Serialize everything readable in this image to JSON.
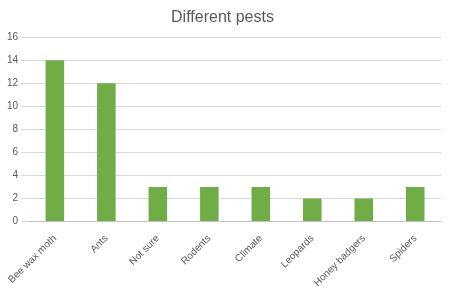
{
  "chart_data": {
    "type": "bar",
    "title": "Different pests",
    "categories": [
      "Bee wax moth",
      "Ants",
      "Not sure",
      "Rodents",
      "Climate",
      "Leopards",
      "Honey badgers",
      "Spiders"
    ],
    "values": [
      14,
      12,
      3,
      3,
      3,
      2,
      2,
      3
    ],
    "color": "#70AD47",
    "ylim": [
      0,
      16
    ],
    "yticks": [
      0,
      2,
      4,
      6,
      8,
      10,
      12,
      14,
      16
    ],
    "grid": true
  }
}
